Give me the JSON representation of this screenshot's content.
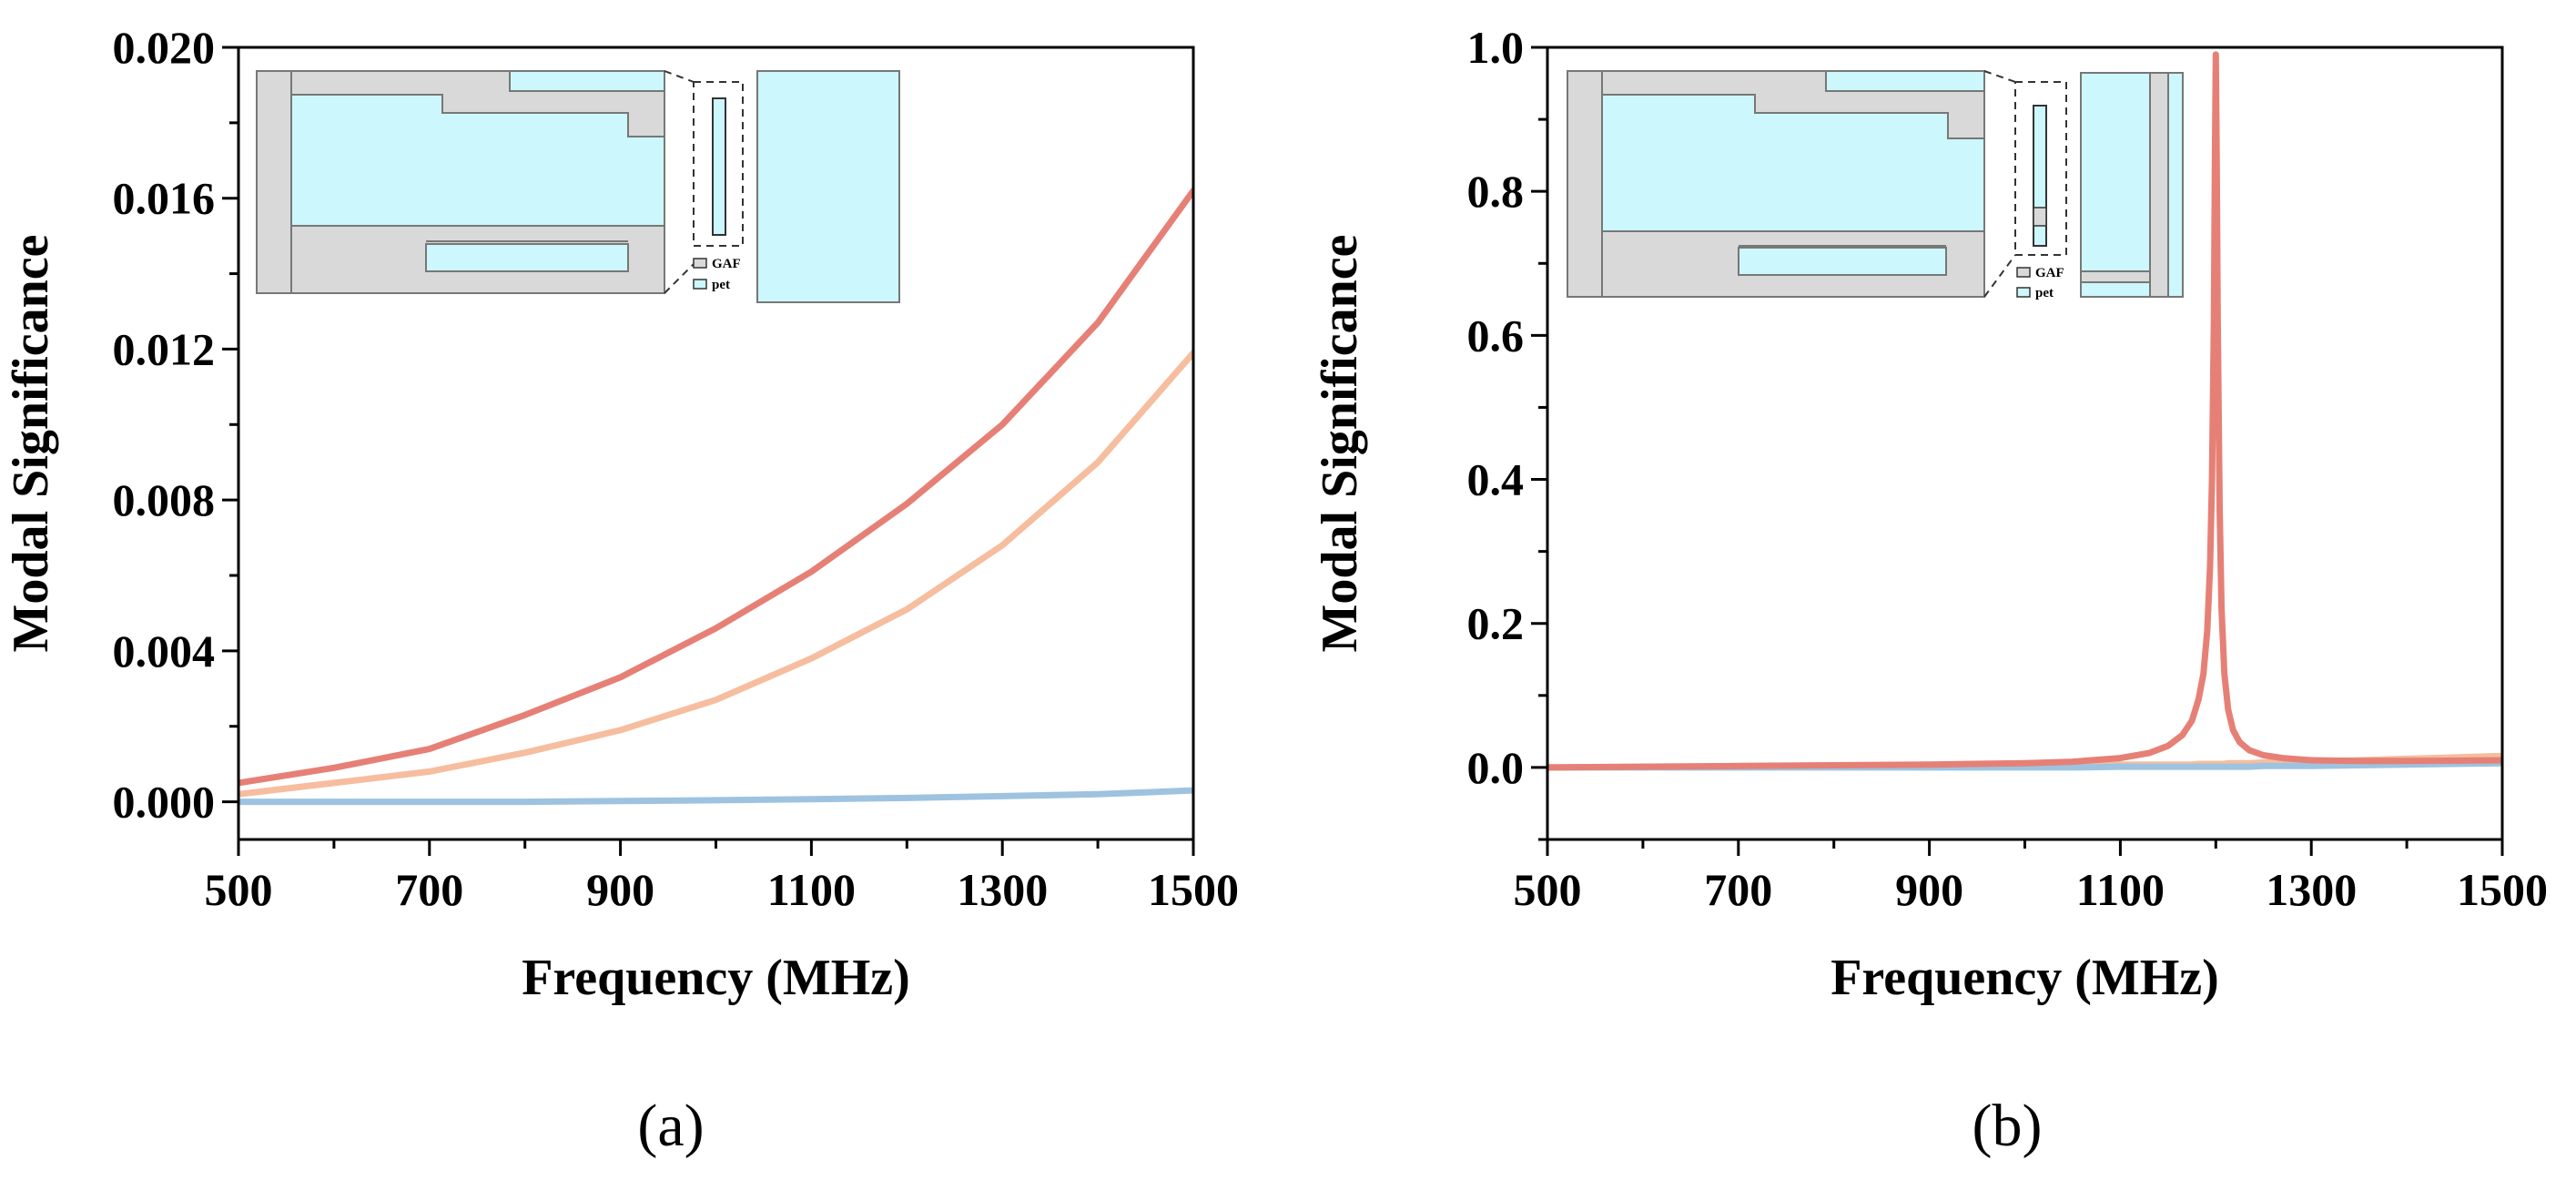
{
  "figure_labels": [
    "(a)",
    "(b)"
  ],
  "inset_legend": [
    "GAF",
    "pet"
  ],
  "colors": {
    "mode_red": "#E68076",
    "mode_orange": "#F6BD9F",
    "mode_blue": "#9DC3E0",
    "metal_gray": "#D9D9D9",
    "pet_cyan": "#CCF7FC"
  },
  "chart_data": [
    {
      "type": "line",
      "title": "",
      "xlabel": "Frequency (MHz)",
      "ylabel": "Modal Significance",
      "xlim": [
        500,
        1500
      ],
      "ylim": [
        -0.001,
        0.02
      ],
      "xticks": [
        "500",
        "700",
        "900",
        "1100",
        "1300",
        "1500"
      ],
      "yticks": [
        "0.000",
        "0.004",
        "0.008",
        "0.012",
        "0.016",
        "0.020"
      ],
      "grid": false,
      "x": [
        500,
        600,
        700,
        800,
        900,
        1000,
        1100,
        1200,
        1300,
        1400,
        1500
      ],
      "series": [
        {
          "color": "#E68076",
          "values": [
            0.0005,
            0.0009,
            0.0014,
            0.0023,
            0.0033,
            0.0046,
            0.0061,
            0.0079,
            0.01,
            0.0127,
            0.0162
          ]
        },
        {
          "color": "#F6BD9F",
          "values": [
            0.0002,
            0.0005,
            0.0008,
            0.0013,
            0.0019,
            0.0027,
            0.0038,
            0.0051,
            0.0068,
            0.009,
            0.0119
          ]
        },
        {
          "color": "#9DC3E0",
          "values": [
            0.0,
            0.0,
            0.0,
            0.0,
            2e-05,
            4e-05,
            7e-05,
            0.0001,
            0.00015,
            0.0002,
            0.0003
          ]
        }
      ]
    },
    {
      "type": "line",
      "title": "",
      "xlabel": "Frequency (MHz)",
      "ylabel": "Modal Significance",
      "xlim": [
        500,
        1500
      ],
      "ylim": [
        -0.1,
        1.0
      ],
      "xticks": [
        "500",
        "700",
        "900",
        "1100",
        "1300",
        "1500"
      ],
      "yticks": [
        "0.0",
        "0.2",
        "0.4",
        "0.6",
        "0.8",
        "1.0"
      ],
      "grid": false,
      "x": [
        500,
        700,
        900,
        1000,
        1050,
        1100,
        1130,
        1150,
        1165,
        1175,
        1182,
        1187,
        1191,
        1194,
        1196,
        1198,
        1199,
        1200,
        1201,
        1202,
        1204,
        1206,
        1209,
        1213,
        1218,
        1225,
        1235,
        1250,
        1270,
        1300,
        1350,
        1400,
        1500
      ],
      "series": [
        {
          "color": "#E68076",
          "values": [
            0.0,
            0.002,
            0.004,
            0.006,
            0.008,
            0.013,
            0.02,
            0.03,
            0.045,
            0.065,
            0.095,
            0.13,
            0.19,
            0.28,
            0.4,
            0.62,
            0.84,
            0.99,
            0.84,
            0.62,
            0.36,
            0.22,
            0.13,
            0.08,
            0.052,
            0.035,
            0.024,
            0.017,
            0.013,
            0.01,
            0.009,
            0.009,
            0.01
          ]
        },
        {
          "color": "#F6BD9F",
          "values": [
            0.0,
            0.001,
            0.002,
            0.003,
            0.003,
            0.004,
            0.004,
            0.004,
            0.004,
            0.004,
            0.005,
            0.005,
            0.005,
            0.005,
            0.005,
            0.005,
            0.005,
            0.005,
            0.005,
            0.005,
            0.005,
            0.005,
            0.005,
            0.006,
            0.006,
            0.006,
            0.006,
            0.007,
            0.007,
            0.008,
            0.01,
            0.012,
            0.016
          ]
        },
        {
          "color": "#9DC3E0",
          "values": [
            0.0,
            0.0,
            0.0,
            0.0,
            0.0,
            0.001,
            0.001,
            0.001,
            0.001,
            0.001,
            0.001,
            0.001,
            0.001,
            0.001,
            0.001,
            0.001,
            0.001,
            0.001,
            0.001,
            0.001,
            0.001,
            0.001,
            0.001,
            0.001,
            0.001,
            0.001,
            0.001,
            0.002,
            0.002,
            0.002,
            0.003,
            0.004,
            0.006
          ]
        }
      ]
    }
  ]
}
